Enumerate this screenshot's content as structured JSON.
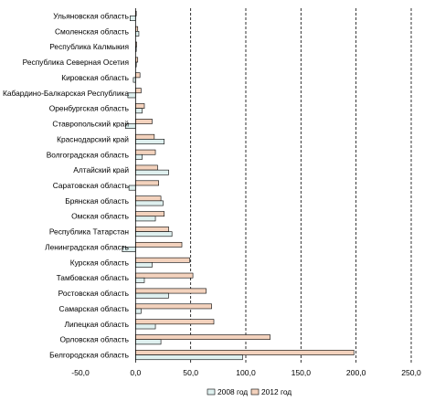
{
  "chart_data": {
    "type": "bar",
    "orientation": "horizontal",
    "categories": [
      "Ульяновская область",
      "Смоленская область",
      "Республика Калмыкия",
      "Республика Северная Осетия",
      "Кировская область",
      "Кабардино-Балкарская Республика",
      "Оренбургская область",
      "Ставропольский край",
      "Краснодарский край",
      "Волгоградская область",
      "Алтайский край",
      "Саратовская область",
      "Брянская область",
      "Омская область",
      "Республика Татарстан",
      "Ленинградская область",
      "Курская область",
      "Тамбовская область",
      "Ростовская область",
      "Самарская область",
      "Липецкая область",
      "Орловская область",
      "Белгородская область"
    ],
    "series": [
      {
        "name": "2008 год",
        "color": "#dff0ef",
        "values": [
          -5,
          3,
          0.5,
          0.5,
          -2,
          -7,
          6,
          -9,
          26,
          6,
          30,
          -6,
          25,
          18,
          33,
          -12,
          15,
          8,
          30,
          5,
          18,
          23,
          97
        ]
      },
      {
        "name": "2012 год",
        "color": "#f3d2bd",
        "values": [
          0,
          2,
          1,
          2,
          4,
          5,
          8,
          15,
          17,
          18,
          20,
          21,
          23,
          26,
          30,
          42,
          49,
          52,
          64,
          69,
          71,
          122,
          198
        ]
      }
    ],
    "xlim": [
      -50,
      250
    ],
    "xticks": [
      "-50,0",
      "0,0",
      "50,0",
      "100,0",
      "150,0",
      "200,0",
      "250,0"
    ],
    "grid": "vertical dashed",
    "legend": "bottom"
  }
}
